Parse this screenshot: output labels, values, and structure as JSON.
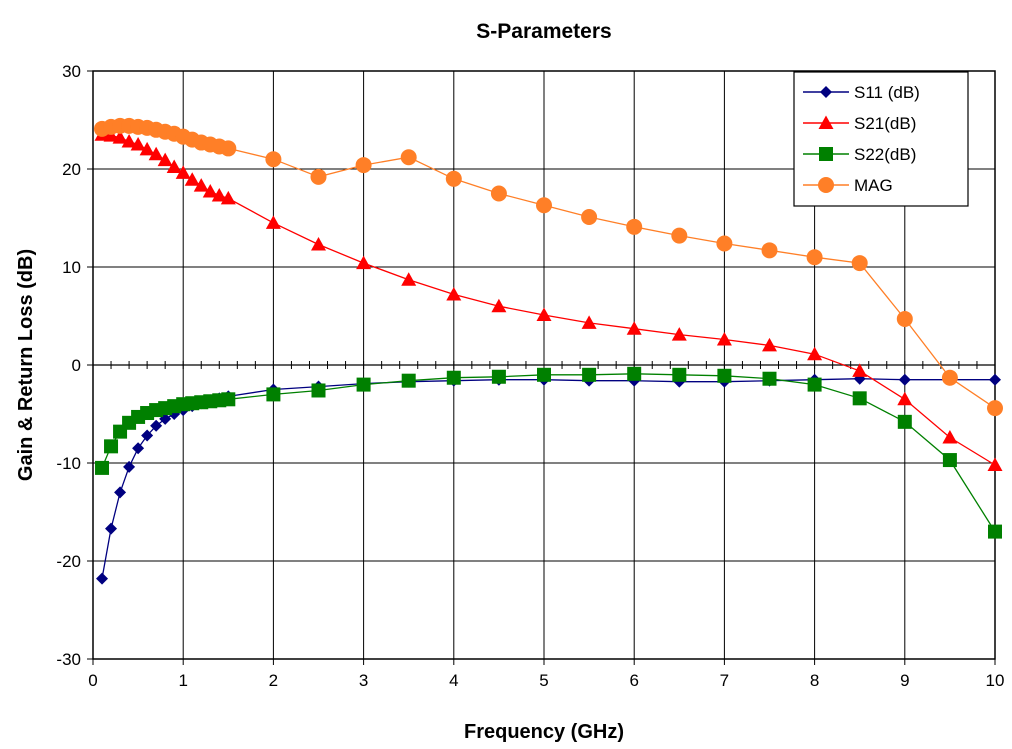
{
  "chart_data": {
    "type": "line",
    "title": "S-Parameters",
    "xlabel": "Frequency (GHz)",
    "ylabel": "Gain & Return Loss (dB)",
    "xlim": [
      0,
      10
    ],
    "ylim": [
      -30,
      30
    ],
    "xticks": [
      0,
      1,
      2,
      3,
      4,
      5,
      6,
      7,
      8,
      9,
      10
    ],
    "yticks": [
      -30,
      -20,
      -10,
      0,
      10,
      20,
      30
    ],
    "grid": true,
    "legend_position": "top-right",
    "series": [
      {
        "name": "S11 (dB)",
        "color": "#000080",
        "marker": "diamond",
        "x": [
          0.1,
          0.2,
          0.3,
          0.4,
          0.5,
          0.6,
          0.7,
          0.8,
          0.9,
          1.0,
          1.1,
          1.2,
          1.3,
          1.4,
          1.5,
          2,
          2.5,
          3,
          3.5,
          4,
          4.5,
          5,
          5.5,
          6,
          6.5,
          7,
          7.5,
          8,
          8.5,
          9,
          9.5,
          10
        ],
        "y": [
          -21.8,
          -16.7,
          -13.0,
          -10.4,
          -8.5,
          -7.2,
          -6.2,
          -5.5,
          -5.0,
          -4.6,
          -4.2,
          -3.9,
          -3.6,
          -3.4,
          -3.2,
          -2.5,
          -2.2,
          -1.9,
          -1.7,
          -1.6,
          -1.5,
          -1.5,
          -1.6,
          -1.6,
          -1.7,
          -1.7,
          -1.6,
          -1.5,
          -1.4,
          -1.5,
          -1.5,
          -1.5
        ]
      },
      {
        "name": "S21(dB)",
        "color": "#ff0000",
        "marker": "triangle",
        "x": [
          0.1,
          0.2,
          0.3,
          0.4,
          0.5,
          0.6,
          0.7,
          0.8,
          0.9,
          1.0,
          1.1,
          1.2,
          1.3,
          1.4,
          1.5,
          2,
          2.5,
          3,
          3.5,
          4,
          4.5,
          5,
          5.5,
          6,
          6.5,
          7,
          7.5,
          8,
          8.5,
          9,
          9.5,
          10
        ],
        "y": [
          23.5,
          23.4,
          23.2,
          22.8,
          22.5,
          22.0,
          21.5,
          20.9,
          20.2,
          19.6,
          18.9,
          18.3,
          17.7,
          17.3,
          17.0,
          14.5,
          12.3,
          10.4,
          8.7,
          7.2,
          6.0,
          5.1,
          4.3,
          3.7,
          3.1,
          2.6,
          2.0,
          1.1,
          -0.6,
          -3.5,
          -7.4,
          -10.2
        ]
      },
      {
        "name": "S22(dB)",
        "color": "#008000",
        "marker": "square",
        "x": [
          0.1,
          0.2,
          0.3,
          0.4,
          0.5,
          0.6,
          0.7,
          0.8,
          0.9,
          1.0,
          1.1,
          1.2,
          1.3,
          1.4,
          1.5,
          2,
          2.5,
          3,
          3.5,
          4,
          4.5,
          5,
          5.5,
          6,
          6.5,
          7,
          7.5,
          8,
          8.5,
          9,
          9.5,
          10
        ],
        "y": [
          -10.5,
          -8.3,
          -6.8,
          -5.9,
          -5.3,
          -4.9,
          -4.6,
          -4.4,
          -4.2,
          -4.0,
          -3.9,
          -3.8,
          -3.7,
          -3.6,
          -3.5,
          -3.0,
          -2.6,
          -2.0,
          -1.6,
          -1.3,
          -1.2,
          -1.0,
          -1.0,
          -0.9,
          -1.0,
          -1.1,
          -1.4,
          -2.0,
          -3.4,
          -5.8,
          -9.7,
          -17.0
        ]
      },
      {
        "name": "MAG",
        "color": "#ff7f27",
        "marker": "circle",
        "x": [
          0.1,
          0.2,
          0.3,
          0.4,
          0.5,
          0.6,
          0.7,
          0.8,
          0.9,
          1.0,
          1.1,
          1.2,
          1.3,
          1.4,
          1.5,
          2,
          2.5,
          3,
          3.5,
          4,
          4.5,
          5,
          5.5,
          6,
          6.5,
          7,
          7.5,
          8,
          8.5,
          9,
          9.5,
          10
        ],
        "y": [
          24.1,
          24.3,
          24.4,
          24.4,
          24.3,
          24.2,
          24.0,
          23.8,
          23.6,
          23.3,
          23.0,
          22.7,
          22.5,
          22.3,
          22.1,
          21.0,
          19.2,
          20.4,
          21.2,
          19.0,
          17.5,
          16.3,
          15.1,
          14.1,
          13.2,
          12.4,
          11.7,
          11.0,
          10.4,
          4.7,
          -1.3,
          -4.4
        ]
      }
    ]
  }
}
